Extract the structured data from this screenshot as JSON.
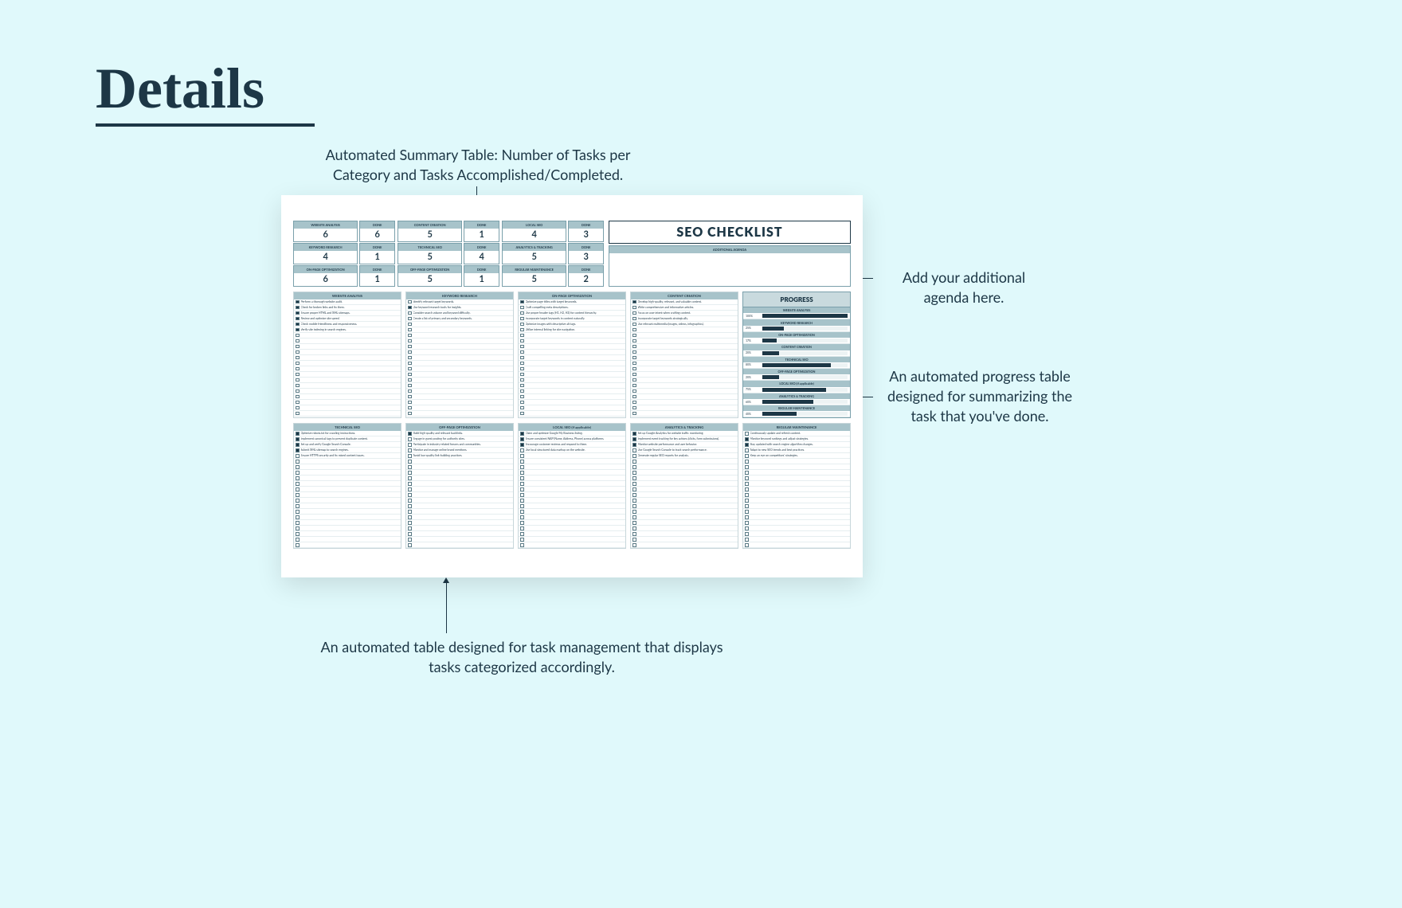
{
  "page_title": "Details",
  "annotations": {
    "top": "Automated Summary Table: Number of Tasks per\nCategory and Tasks Accomplished/Completed.",
    "right1": "Add your additional\nagenda here.",
    "right2": "An automated progress table\ndesigned for summarizing the\ntask that you've done.",
    "bottom": "An automated table designed for task management that displays\ntasks categorized accordingly."
  },
  "colors": {
    "bg": "#e0f9fb",
    "ink": "#1d3746",
    "cell_hdr": "#a7c3ca",
    "border": "#7aa0ab",
    "bar_fill": "#1d3746"
  },
  "sheet_title": "SEO CHECKLIST",
  "agenda_header": "ADDITIONAL AGENDA",
  "done_label": "DONE",
  "summary": [
    [
      {
        "cat": "WEBSITE ANALYSIS",
        "n": 6,
        "done": 6
      },
      {
        "cat": "CONTENT CREATION",
        "n": 5,
        "done": 1
      },
      {
        "cat": "LOCAL SEO",
        "n": 4,
        "done": 3
      }
    ],
    [
      {
        "cat": "KEYWORD RESEARCH",
        "n": 4,
        "done": 1
      },
      {
        "cat": "TECHNICAL SEO",
        "n": 5,
        "done": 4
      },
      {
        "cat": "ANALYTICS & TRACKING",
        "n": 5,
        "done": 3
      }
    ],
    [
      {
        "cat": "ON-PAGE OPTIMIZATION",
        "n": 6,
        "done": 1
      },
      {
        "cat": "OFF-PAGE OPTIMIZATION",
        "n": 5,
        "done": 1
      },
      {
        "cat": "REGULAR MAINTENANCE",
        "n": 5,
        "done": 2
      }
    ]
  ],
  "progress_title": "PROGRESS",
  "progress": [
    {
      "label": "WEBSITE ANALYSIS",
      "pct": 100
    },
    {
      "label": "KEYWORD RESEARCH",
      "pct": 25
    },
    {
      "label": "ON-PAGE OPTIMIZATION",
      "pct": 17
    },
    {
      "label": "CONTENT CREATION",
      "pct": 20
    },
    {
      "label": "TECHNICAL SEO",
      "pct": 80
    },
    {
      "label": "OFF-PAGE OPTIMIZATION",
      "pct": 20
    },
    {
      "label": "LOCAL SEO (if applicable)",
      "pct": 75
    },
    {
      "label": "ANALYTICS & TRACKING",
      "pct": 60
    },
    {
      "label": "REGULAR MAINTENANCE",
      "pct": 40
    }
  ],
  "task_columns_top": [
    {
      "header": "WEBSITE ANALYSIS",
      "items": [
        {
          "t": "Perform a thorough website audit.",
          "c": true
        },
        {
          "t": "Check for broken links and fix them.",
          "c": true
        },
        {
          "t": "Ensure proper HTML and XML sitemaps.",
          "c": true
        },
        {
          "t": "Review and optimize site speed.",
          "c": true
        },
        {
          "t": "Check mobile friendliness and responsiveness.",
          "c": true
        },
        {
          "t": "Verify site indexing in search engines.",
          "c": true
        }
      ],
      "blank": 15
    },
    {
      "header": "KEYWORD RESEARCH",
      "items": [
        {
          "t": "Identify relevant target keywords.",
          "c": false
        },
        {
          "t": "Use keyword research tools for insights.",
          "c": true
        },
        {
          "t": "Consider search volume and keyword difficulty.",
          "c": false
        },
        {
          "t": "Create a list of primary and secondary keywords.",
          "c": false
        }
      ],
      "blank": 17
    },
    {
      "header": "ON-PAGE OPTIMIZATION",
      "items": [
        {
          "t": "Optimize page titles with target keywords.",
          "c": true
        },
        {
          "t": "Craft compelling meta descriptions.",
          "c": false
        },
        {
          "t": "Use proper header tags (H1, H2, H3) for content hierarchy.",
          "c": false
        },
        {
          "t": "Incorporate target keywords in content naturally.",
          "c": false
        },
        {
          "t": "Optimize images with descriptive alt tags.",
          "c": false
        },
        {
          "t": "Utilize internal linking for site navigation.",
          "c": false
        }
      ],
      "blank": 15
    },
    {
      "header": "CONTENT CREATION",
      "items": [
        {
          "t": "Develop high-quality, relevant, and valuable content.",
          "c": true
        },
        {
          "t": "Write comprehensive and informative articles.",
          "c": false
        },
        {
          "t": "Focus on user intent when crafting content.",
          "c": false
        },
        {
          "t": "Incorporate target keywords strategically.",
          "c": false
        },
        {
          "t": "Use relevant multimedia (images, videos, infographics).",
          "c": false
        }
      ],
      "blank": 16
    }
  ],
  "task_columns_bot": [
    {
      "header": "TECHNICAL SEO",
      "items": [
        {
          "t": "Optimize robots.txt for crawling instructions.",
          "c": true
        },
        {
          "t": "Implement canonical tags to prevent duplicate content.",
          "c": true
        },
        {
          "t": "Set up and verify Google Search Console.",
          "c": true
        },
        {
          "t": "Submit XML sitemap to search engines.",
          "c": true
        },
        {
          "t": "Ensure HTTPS security and fix mixed content issues.",
          "c": false
        }
      ],
      "blank": 16
    },
    {
      "header": "OFF-PAGE OPTIMIZATION",
      "items": [
        {
          "t": "Build high-quality and relevant backlinks.",
          "c": true
        },
        {
          "t": "Engage in guest posting for authority sites.",
          "c": false
        },
        {
          "t": "Participate in industry-related forums and communities.",
          "c": false
        },
        {
          "t": "Monitor and manage online brand mentions.",
          "c": false
        },
        {
          "t": "Avoid low-quality link-building practices.",
          "c": false
        }
      ],
      "blank": 16
    },
    {
      "header": "LOCAL SEO (if applicable)",
      "items": [
        {
          "t": "Claim and optimize Google My Business listing.",
          "c": true
        },
        {
          "t": "Ensure consistent NAP (Name, Address, Phone) across platforms.",
          "c": true
        },
        {
          "t": "Encourage customer reviews and respond to them.",
          "c": true
        },
        {
          "t": "Use local structured data markup on the website.",
          "c": false
        }
      ],
      "blank": 17
    },
    {
      "header": "ANALYTICS & TRACKING",
      "items": [
        {
          "t": "Set up Google Analytics for website traffic monitoring.",
          "c": true
        },
        {
          "t": "Implement event tracking for key actions (clicks, form submissions).",
          "c": true
        },
        {
          "t": "Monitor website performance and user behavior.",
          "c": true
        },
        {
          "t": "Use Google Search Console to track search performance.",
          "c": false
        },
        {
          "t": "Generate regular SEO reports for analysis.",
          "c": false
        }
      ],
      "blank": 16
    },
    {
      "header": "REGULAR MAINTENANCE",
      "items": [
        {
          "t": "Continuously update and refresh content.",
          "c": false
        },
        {
          "t": "Monitor keyword rankings and adjust strategies.",
          "c": true
        },
        {
          "t": "Stay updated with search engine algorithm changes.",
          "c": true
        },
        {
          "t": "Adapt to new SEO trends and best practices.",
          "c": false
        },
        {
          "t": "Keep an eye on competitors' strategies.",
          "c": false
        }
      ],
      "blank": 16
    }
  ]
}
